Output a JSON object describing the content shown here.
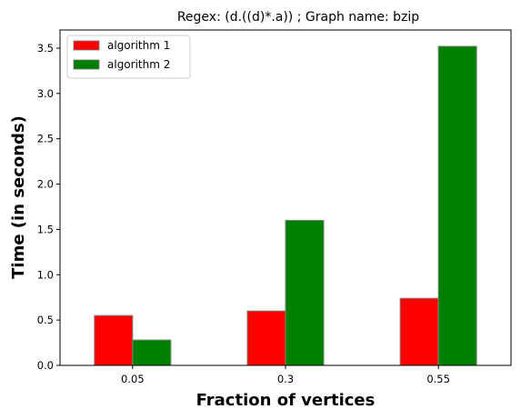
{
  "chart_data": {
    "type": "bar",
    "title": "Regex: (d.((d)*.a)) ; Graph name: bzip",
    "xlabel": "Fraction of vertices",
    "ylabel": "Time (in seconds)",
    "categories": [
      "0.05",
      "0.3",
      "0.55"
    ],
    "series": [
      {
        "name": "algorithm 1",
        "color": "#ff0000",
        "values": [
          0.55,
          0.6,
          0.74
        ]
      },
      {
        "name": "algorithm 2",
        "color": "#008000",
        "values": [
          0.28,
          1.6,
          3.52
        ]
      }
    ],
    "ylim": [
      0,
      3.7
    ],
    "yticks": [
      "0.0",
      "0.5",
      "1.0",
      "1.5",
      "2.0",
      "2.5",
      "3.0",
      "3.5"
    ],
    "grid": false,
    "legend_position": "top-left"
  }
}
